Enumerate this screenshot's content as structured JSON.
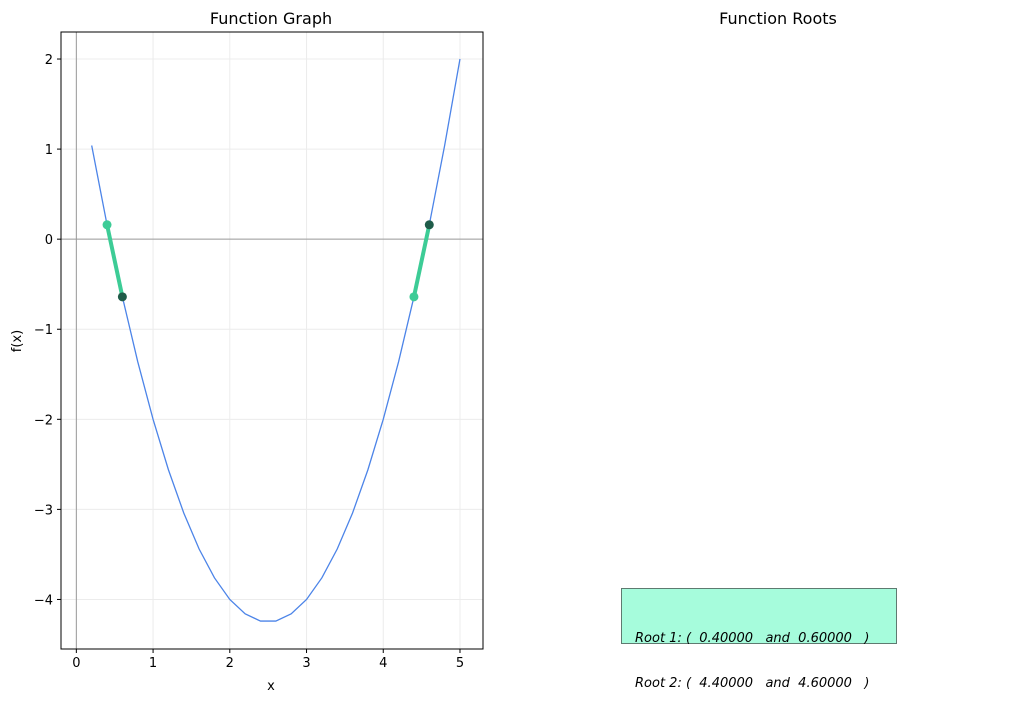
{
  "chart_data": [
    {
      "type": "line",
      "title": "Function Graph",
      "xlabel": "x",
      "ylabel": "f(x)",
      "xlim": [
        -0.2,
        5.3
      ],
      "ylim": [
        -4.55,
        2.3
      ],
      "x_ticks": [
        0,
        1,
        2,
        3,
        4,
        5
      ],
      "y_ticks": [
        -4,
        -3,
        -2,
        -1,
        0,
        1,
        2
      ],
      "x_tick_labels": [
        "0",
        "1",
        "2",
        "3",
        "4",
        "5"
      ],
      "y_tick_labels": [
        "−4",
        "−3",
        "−2",
        "−1",
        "0",
        "1",
        "2"
      ],
      "grid": true,
      "series": [
        {
          "x": [
            0.2,
            0.4,
            0.6,
            0.8,
            1.0,
            1.2,
            1.4,
            1.6,
            1.8,
            2.0,
            2.2,
            2.4,
            2.6,
            2.8,
            3.0,
            3.2,
            3.4,
            3.6,
            3.8,
            4.0,
            4.2,
            4.4,
            4.6,
            4.8,
            5.0
          ],
          "y": [
            1.04,
            0.16,
            -0.64,
            -1.36,
            -2.0,
            -2.56,
            -3.04,
            -3.44,
            -3.76,
            -4.0,
            -4.16,
            -4.24,
            -4.24,
            -4.16,
            -4.0,
            -3.76,
            -3.44,
            -3.04,
            -2.56,
            -2.0,
            -1.36,
            -0.64,
            0.16,
            1.04,
            2.0
          ],
          "color": "#4c84e8"
        }
      ],
      "brackets": [
        {
          "x": [
            0.4,
            0.6
          ],
          "y": [
            0.16,
            -0.64
          ]
        },
        {
          "x": [
            4.4,
            4.6
          ],
          "y": [
            -0.64,
            0.16
          ]
        }
      ],
      "bracket_color": "#3dcc96",
      "point_colors": {
        "light": "#3dcc96",
        "dark": "#1f5c49"
      }
    },
    {
      "type": "table",
      "title": "Function Roots",
      "rows": [
        "Root 1: (  0.40000   and  0.60000   )",
        "Root 2: (  4.40000   and  4.60000   )"
      ],
      "box_color": "#a6fcdc"
    }
  ]
}
